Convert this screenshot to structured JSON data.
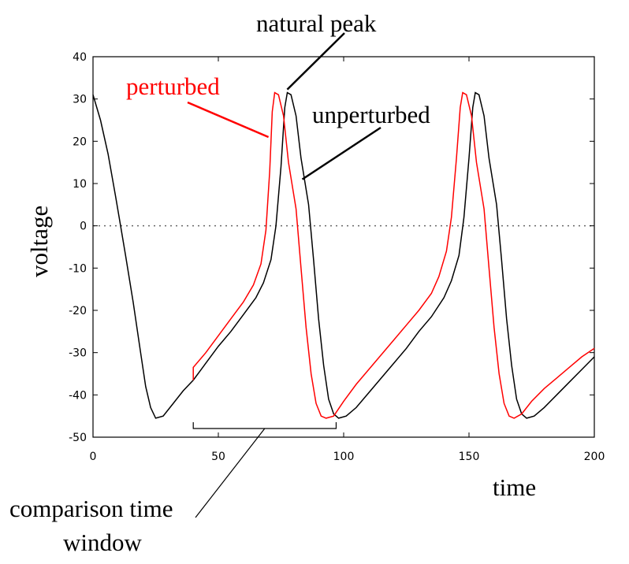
{
  "chart_data": {
    "type": "line",
    "xlabel": "time",
    "ylabel": "voltage",
    "xlim": [
      0,
      200
    ],
    "ylim": [
      -50,
      40
    ],
    "x_ticks": [
      0,
      50,
      100,
      150,
      200
    ],
    "y_ticks": [
      40,
      30,
      20,
      10,
      0,
      -10,
      -20,
      -30,
      -40,
      -50
    ],
    "zero_reference_line": "dotted",
    "series": [
      {
        "name": "unperturbed",
        "color": "#000000",
        "points": [
          [
            0,
            31
          ],
          [
            3,
            25
          ],
          [
            6,
            17
          ],
          [
            9,
            7
          ],
          [
            11,
            0
          ],
          [
            13,
            -7
          ],
          [
            16,
            -18
          ],
          [
            19,
            -30
          ],
          [
            21,
            -38
          ],
          [
            23,
            -43
          ],
          [
            25,
            -45.5
          ],
          [
            28,
            -45
          ],
          [
            32,
            -42
          ],
          [
            36,
            -39
          ],
          [
            40,
            -36.5
          ],
          [
            45,
            -32.5
          ],
          [
            50,
            -28.5
          ],
          [
            55,
            -25
          ],
          [
            60,
            -21
          ],
          [
            65,
            -17
          ],
          [
            68,
            -13.5
          ],
          [
            71,
            -8
          ],
          [
            73,
            0
          ],
          [
            75,
            14
          ],
          [
            76.5,
            28
          ],
          [
            77.5,
            31.5
          ],
          [
            79,
            31
          ],
          [
            81,
            26
          ],
          [
            83,
            16
          ],
          [
            86,
            5
          ],
          [
            88,
            -8
          ],
          [
            90,
            -22
          ],
          [
            92,
            -33
          ],
          [
            94,
            -41
          ],
          [
            96,
            -44.5
          ],
          [
            98,
            -45.5
          ],
          [
            101,
            -45
          ],
          [
            105,
            -43
          ],
          [
            110,
            -39.5
          ],
          [
            115,
            -36
          ],
          [
            120,
            -32.5
          ],
          [
            125,
            -29
          ],
          [
            130,
            -25
          ],
          [
            135,
            -21.5
          ],
          [
            140,
            -17
          ],
          [
            143,
            -13
          ],
          [
            146,
            -7
          ],
          [
            148,
            2
          ],
          [
            150,
            16
          ],
          [
            151.5,
            28
          ],
          [
            152.5,
            31.5
          ],
          [
            154,
            31
          ],
          [
            156,
            26
          ],
          [
            158,
            16
          ],
          [
            161,
            5
          ],
          [
            163,
            -8
          ],
          [
            165,
            -22
          ],
          [
            167,
            -33
          ],
          [
            169,
            -41
          ],
          [
            171,
            -44.5
          ],
          [
            173,
            -45.5
          ],
          [
            176,
            -45
          ],
          [
            180,
            -43
          ],
          [
            185,
            -40
          ],
          [
            190,
            -37
          ],
          [
            195,
            -34
          ],
          [
            200,
            -31
          ]
        ]
      },
      {
        "name": "perturbed",
        "color": "#ff0000",
        "points": [
          [
            40,
            -36.5
          ],
          [
            40,
            -33.5
          ],
          [
            45,
            -30
          ],
          [
            50,
            -26
          ],
          [
            55,
            -22
          ],
          [
            60,
            -18
          ],
          [
            64,
            -14
          ],
          [
            67,
            -9
          ],
          [
            69,
            -1
          ],
          [
            70.5,
            13
          ],
          [
            71.5,
            27
          ],
          [
            72.5,
            31.5
          ],
          [
            74,
            31
          ],
          [
            76,
            26
          ],
          [
            78,
            15
          ],
          [
            81,
            4
          ],
          [
            83,
            -10
          ],
          [
            85,
            -24
          ],
          [
            87,
            -35
          ],
          [
            89,
            -42
          ],
          [
            91,
            -45
          ],
          [
            93,
            -45.5
          ],
          [
            96,
            -45
          ],
          [
            100,
            -41.5
          ],
          [
            105,
            -37.5
          ],
          [
            110,
            -34
          ],
          [
            115,
            -30.5
          ],
          [
            120,
            -27
          ],
          [
            125,
            -23.5
          ],
          [
            130,
            -20
          ],
          [
            135,
            -16
          ],
          [
            138,
            -12
          ],
          [
            141,
            -6
          ],
          [
            143,
            2
          ],
          [
            145,
            16
          ],
          [
            146.5,
            28
          ],
          [
            147.5,
            31.5
          ],
          [
            149,
            31
          ],
          [
            151,
            26
          ],
          [
            153,
            15
          ],
          [
            156,
            4
          ],
          [
            158,
            -10
          ],
          [
            160,
            -24
          ],
          [
            162,
            -35
          ],
          [
            164,
            -42
          ],
          [
            166,
            -45
          ],
          [
            168,
            -45.5
          ],
          [
            171,
            -44.5
          ],
          [
            175,
            -41.5
          ],
          [
            180,
            -38.5
          ],
          [
            185,
            -36
          ],
          [
            190,
            -33.5
          ],
          [
            195,
            -31
          ],
          [
            200,
            -29
          ]
        ]
      }
    ],
    "annotations": {
      "natural_peak": {
        "text": "natural peak",
        "target_x": 77.5,
        "target_y": 31.5
      },
      "perturbed": {
        "text": "perturbed",
        "target_x": 70,
        "target_y": 21
      },
      "unperturbed": {
        "text": "unperturbed",
        "target_x": 83.5,
        "target_y": 11
      },
      "window": {
        "line1": "comparison time",
        "line2": "window",
        "x_start": 40,
        "x_end": 97
      }
    }
  }
}
